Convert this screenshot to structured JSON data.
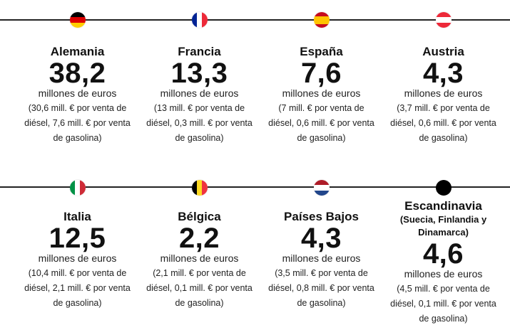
{
  "rows": [
    {
      "items": [
        {
          "country": "Alemania",
          "value": "38,2",
          "unit": "millones de euros",
          "detail_1": "(30,6 mill. € por venta de",
          "detail_2": "diésel, 7,6 mill. € por venta",
          "detail_3": "de gasolina)",
          "flag": [
            "#000000",
            "#dd0000",
            "#ffce00"
          ]
        },
        {
          "country": "Francia",
          "value": "13,3",
          "unit": "millones de euros",
          "detail_1": "(13 mill. € por venta de",
          "detail_2": "diésel, 0,3 mill. € por venta",
          "detail_3": "de gasolina)",
          "flag": [
            "#002395",
            "#ffffff",
            "#ed2939"
          ]
        },
        {
          "country": "España",
          "value": "7,6",
          "unit": "millones de euros",
          "detail_1": "(7 mill. € por venta de",
          "detail_2": "diésel, 0,6 mill. € por venta",
          "detail_3": "de gasolina)",
          "flag": [
            "#c60b1e",
            "#ffc400",
            "#c60b1e"
          ]
        },
        {
          "country": "Austria",
          "value": "4,3",
          "unit": "millones de euros",
          "detail_1": "(3,7 mill. € por venta de",
          "detail_2": "diésel, 0,6 mill. € por venta",
          "detail_3": "de gasolina)",
          "flag": [
            "#ed2939",
            "#ffffff",
            "#ed2939"
          ]
        }
      ]
    },
    {
      "items": [
        {
          "country": "Italia",
          "value": "12,5",
          "unit": "millones de euros",
          "detail_1": "(10,4 mill. € por venta de",
          "detail_2": "diésel, 2,1 mill. € por venta",
          "detail_3": "de gasolina)",
          "flag": [
            "#009246",
            "#ffffff",
            "#ce2b37"
          ]
        },
        {
          "country": "Bélgica",
          "value": "2,2",
          "unit": "millones de euros",
          "detail_1": "(2,1 mill. € por venta de",
          "detail_2": "diésel, 0,1 mill. € por venta",
          "detail_3": "de gasolina)",
          "flag": [
            "#000000",
            "#fdda24",
            "#ef3340"
          ]
        },
        {
          "country": "Países Bajos",
          "value": "4,3",
          "unit": "millones de euros",
          "detail_1": "(3,5 mill. € por venta de",
          "detail_2": "diésel, 0,8 mill. € por venta",
          "detail_3": "de gasolina)",
          "flag": [
            "#ae1c28",
            "#ffffff",
            "#21468b"
          ]
        },
        {
          "country": "Escandinavia",
          "country_sub_1": "(Suecia, Finlandia y",
          "country_sub_2": "Dinamarca)",
          "value": "4,6",
          "unit": "millones de euros",
          "detail_1": "(4,5 mill. € por venta de",
          "detail_2": "diésel, 0,1 mill. € por venta",
          "detail_3": "de gasolina)",
          "flag": [
            "#000000"
          ]
        }
      ]
    }
  ]
}
